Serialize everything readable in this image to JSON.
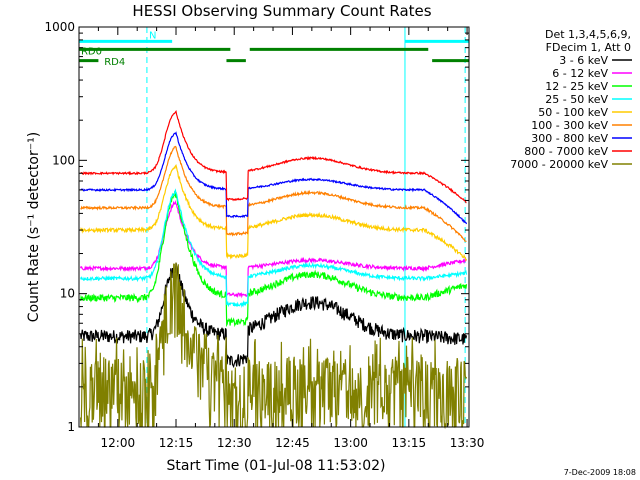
{
  "chart_data": {
    "type": "line",
    "title": "HESSI Observing Summary Count Rates",
    "xlabel": "Start Time (01-Jul-08 11:53:02)",
    "ylabel": "Count Rate (s⁻¹ detector⁻¹)",
    "yscale": "log",
    "ylim": [
      1,
      1000
    ],
    "xlim_minutes": [
      -3.0,
      97.5
    ],
    "x_ticks": [
      {
        "label": "12:00",
        "t": 7
      },
      {
        "label": "12:15",
        "t": 22
      },
      {
        "label": "12:30",
        "t": 37
      },
      {
        "label": "12:45",
        "t": 52
      },
      {
        "label": "13:00",
        "t": 67
      },
      {
        "label": "13:15",
        "t": 82
      },
      {
        "label": "13:30",
        "t": 97
      }
    ],
    "y_ticks": [
      {
        "label": "1",
        "v": 1
      },
      {
        "label": "10",
        "v": 10
      },
      {
        "label": "100",
        "v": 100
      },
      {
        "label": "1000",
        "v": 1000
      }
    ],
    "legend": {
      "placement": "right",
      "header": [
        "Det 1,3,4,5,6,9,",
        "FDecim 1, Att 0"
      ]
    },
    "series": [
      {
        "name": "3 - 6 keV",
        "color": "#000000",
        "base": 4.8,
        "peak": 16,
        "bump": 1.8,
        "rise_end": 0.95,
        "noise": 0.12
      },
      {
        "name": "6 - 12 keV",
        "color": "#ff00ff",
        "base": 15.5,
        "peak": 48,
        "bump": 1.15,
        "rise_end": 1.15,
        "noise": 0.03
      },
      {
        "name": "12 - 25 keV",
        "color": "#00ff00",
        "base": 9.3,
        "peak": 56,
        "bump": 1.5,
        "rise_end": 1.25,
        "noise": 0.06
      },
      {
        "name": "25 - 50 keV",
        "color": "#00ffff",
        "base": 13.0,
        "peak": 58,
        "bump": 1.25,
        "rise_end": 1.1,
        "noise": 0.03
      },
      {
        "name": "50 - 100 keV",
        "color": "#ffcc00",
        "base": 30,
        "peak": 90,
        "bump": 1.3,
        "rise_end": 0.6,
        "noise": 0.03
      },
      {
        "name": "100 - 300 keV",
        "color": "#ff8000",
        "base": 44,
        "peak": 125,
        "bump": 1.3,
        "rise_end": 0.55,
        "noise": 0.02
      },
      {
        "name": "300 - 800 keV",
        "color": "#0000ff",
        "base": 60,
        "peak": 160,
        "bump": 1.2,
        "rise_end": 0.55,
        "noise": 0.015
      },
      {
        "name": "800 - 7000 keV",
        "color": "#ff0000",
        "base": 80,
        "peak": 230,
        "bump": 1.3,
        "rise_end": 0.6,
        "noise": 0.015
      },
      {
        "name": "7000 - 20000 keV",
        "color": "#808000",
        "base": 2.5,
        "peak": 16,
        "bump": 1.0,
        "rise_end": 1.0,
        "noise": 0.35
      }
    ],
    "flare_peak_minute": 22,
    "attenuator_step_minutes": [
      35,
      40.5
    ],
    "segments": {
      "cyan_bar": {
        "label": "N",
        "color": "#00ffff",
        "v": 780,
        "ranges": [
          [
            -3,
            21
          ],
          [
            81,
            97.5
          ]
        ]
      },
      "green_bar_1": {
        "label": "RD0",
        "color": "#008000",
        "v": 680,
        "ranges": [
          [
            -3,
            36
          ],
          [
            41,
            87
          ]
        ]
      },
      "green_bar_2": {
        "label": "RD4",
        "color": "#008000",
        "v": 560,
        "ranges": [
          [
            -3,
            2
          ],
          [
            35,
            40
          ],
          [
            88,
            97.5
          ]
        ]
      }
    },
    "vlines": [
      {
        "t": 14.5,
        "color": "#00ffff",
        "style": "dashed"
      },
      {
        "t": 81,
        "color": "#00ffff",
        "style": "solid"
      },
      {
        "t": 96.5,
        "color": "#00ffff",
        "style": "dashed"
      }
    ],
    "grid": false
  },
  "footer_date": "7-Dec-2009 18:08"
}
